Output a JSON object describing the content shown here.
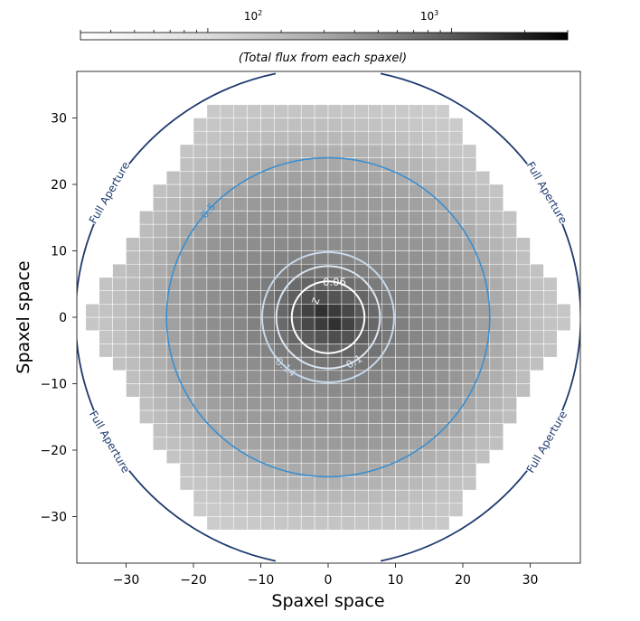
{
  "chart_data": {
    "type": "heatmap",
    "title": "",
    "xlabel": "Spaxel space",
    "ylabel": "Spaxel space",
    "xlim": [
      -37,
      37
    ],
    "ylim": [
      -37,
      37
    ],
    "x_ticks": [
      -30,
      -20,
      -10,
      0,
      10,
      20,
      30
    ],
    "y_ticks": [
      30,
      20,
      10,
      0,
      -10,
      -20,
      -30
    ],
    "x_tick_labels": [
      "−30",
      "−20",
      "−10",
      "0",
      "10",
      "20",
      "30"
    ],
    "y_tick_labels": [
      "30",
      "20",
      "10",
      "0",
      "−10",
      "−20",
      "−30"
    ],
    "colorbar": {
      "scale": "log",
      "colormap": "Greys",
      "range": [
        30,
        3000
      ],
      "tick_values": [
        100,
        1000
      ],
      "tick_base": "10",
      "tick_exponents": [
        "2",
        "3"
      ],
      "label": "(Total flux from each spaxel)"
    },
    "grid": "white",
    "ifu_shape": "hexagon",
    "ifu_radius": 36,
    "apertures": [
      {
        "label": "0.06",
        "radius": 5.4,
        "color": "#ffffff"
      },
      {
        "label": "0.1",
        "radius": 7.7,
        "color": "#dbe6f0"
      },
      {
        "label": "0.14",
        "radius": 9.8,
        "color": "#c6d8ea"
      },
      {
        "label": "0.5",
        "radius": 24,
        "color": "#3b8fd0"
      },
      {
        "label": "Full Aperture",
        "radius": 37.5,
        "color": "#1e3a6e"
      }
    ],
    "small_label": "Z",
    "full_aperture_labels": [
      "Full Aperture",
      "Full Aperture",
      "Full Aperture",
      "Full Aperture"
    ]
  }
}
